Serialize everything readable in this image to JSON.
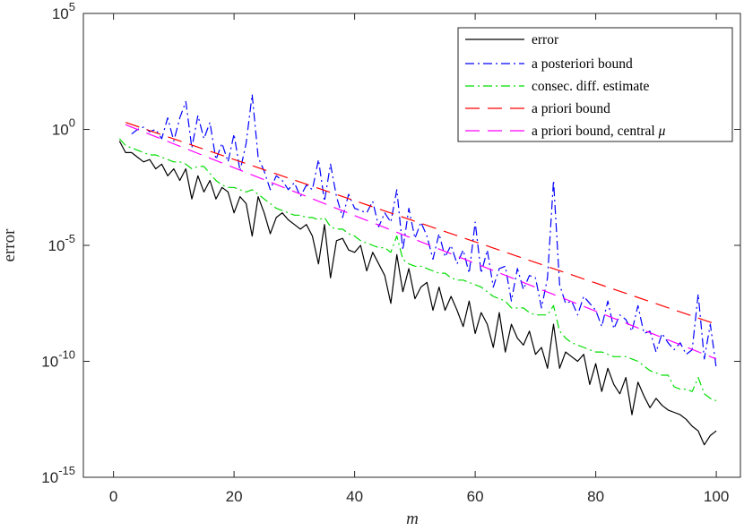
{
  "chart_data": {
    "type": "line",
    "xlabel": "m",
    "ylabel": "error",
    "xlim": [
      -5,
      104
    ],
    "ylim_exponent": [
      -15,
      5
    ],
    "y_scale": "log10",
    "x_ticks": [
      0,
      20,
      40,
      60,
      80,
      100
    ],
    "y_ticks": [
      {
        "base": "10",
        "exp": "5",
        "value": 5
      },
      {
        "base": "10",
        "exp": "0",
        "value": 0
      },
      {
        "base": "10",
        "exp": "-5",
        "value": -5
      },
      {
        "base": "10",
        "exp": "-10",
        "value": -10
      },
      {
        "base": "10",
        "exp": "-15",
        "value": -15
      }
    ],
    "legend_position": "top-right",
    "series": [
      {
        "name": "error",
        "color": "#000000",
        "dash": "",
        "x": [
          1,
          2,
          3,
          4,
          5,
          6,
          7,
          8,
          9,
          10,
          11,
          12,
          13,
          14,
          15,
          16,
          17,
          18,
          19,
          20,
          21,
          22,
          23,
          24,
          25,
          26,
          27,
          28,
          29,
          30,
          31,
          32,
          33,
          34,
          35,
          36,
          37,
          38,
          39,
          40,
          41,
          42,
          43,
          44,
          45,
          46,
          47,
          48,
          49,
          50,
          51,
          52,
          53,
          54,
          55,
          56,
          57,
          58,
          59,
          60,
          61,
          62,
          63,
          64,
          65,
          66,
          67,
          68,
          69,
          70,
          71,
          72,
          73,
          74,
          75,
          76,
          77,
          78,
          79,
          80,
          81,
          82,
          83,
          84,
          85,
          86,
          87,
          88,
          89,
          90,
          91,
          92,
          93,
          94,
          95,
          96,
          97,
          98,
          99,
          100
        ],
        "log10_y": [
          -0.5,
          -1.0,
          -1.0,
          -1.2,
          -1.4,
          -1.3,
          -1.7,
          -1.5,
          -2.0,
          -1.7,
          -2.2,
          -1.7,
          -3.0,
          -2.0,
          -2.7,
          -2.2,
          -3.0,
          -2.5,
          -2.7,
          -3.6,
          -2.9,
          -3.2,
          -4.6,
          -2.9,
          -3.6,
          -4.5,
          -3.8,
          -3.6,
          -3.9,
          -4.1,
          -4.3,
          -4.1,
          -4.6,
          -5.8,
          -4.1,
          -6.4,
          -4.8,
          -4.7,
          -5.2,
          -5.3,
          -5.0,
          -6.1,
          -5.3,
          -5.8,
          -6.3,
          -7.5,
          -5.4,
          -7.0,
          -6.0,
          -7.3,
          -6.8,
          -6.6,
          -7.8,
          -6.8,
          -7.8,
          -7.2,
          -7.8,
          -8.5,
          -7.4,
          -8.8,
          -7.9,
          -8.4,
          -9.4,
          -7.9,
          -9.6,
          -8.4,
          -9.0,
          -9.3,
          -8.7,
          -9.7,
          -9.4,
          -10.3,
          -8.4,
          -10.3,
          -9.6,
          -9.8,
          -10.0,
          -9.7,
          -11.0,
          -10.1,
          -11.3,
          -10.3,
          -11.0,
          -11.4,
          -10.7,
          -12.3,
          -10.9,
          -11.5,
          -12.0,
          -11.6,
          -11.9,
          -12.1,
          -12.2,
          -12.3,
          -12.5,
          -12.8,
          -13.0,
          -13.6,
          -13.2,
          -13.0,
          -13.4
        ]
      },
      {
        "name": "a posteriori bound",
        "color": "#0000ff",
        "dash": "10,4,2,4",
        "x": [
          3,
          4,
          5,
          6,
          7,
          8,
          9,
          10,
          11,
          12,
          13,
          14,
          15,
          16,
          17,
          18,
          19,
          20,
          21,
          22,
          23,
          24,
          25,
          26,
          27,
          28,
          29,
          30,
          31,
          32,
          33,
          34,
          35,
          36,
          37,
          38,
          39,
          40,
          41,
          42,
          43,
          44,
          45,
          46,
          47,
          48,
          49,
          50,
          51,
          52,
          53,
          54,
          55,
          56,
          57,
          58,
          59,
          60,
          61,
          62,
          63,
          64,
          65,
          66,
          67,
          68,
          69,
          70,
          71,
          72,
          73,
          74,
          75,
          76,
          77,
          78,
          79,
          80,
          81,
          82,
          83,
          84,
          85,
          86,
          87,
          88,
          89,
          90,
          91,
          92,
          93,
          94,
          95,
          96,
          97,
          98,
          99,
          100
        ],
        "log10_y": [
          -0.2,
          0.0,
          0.1,
          -0.1,
          0.0,
          -0.4,
          0.5,
          -0.5,
          0.5,
          1.2,
          -0.8,
          0.6,
          -0.4,
          0.3,
          -1.3,
          -0.6,
          -1.4,
          -0.2,
          -1.8,
          -0.6,
          1.5,
          -1.2,
          -1.8,
          -2.6,
          -2.0,
          -2.2,
          -2.6,
          -2.3,
          -2.9,
          -2.4,
          -2.6,
          -1.3,
          -3.1,
          -1.5,
          -2.9,
          -3.8,
          -2.8,
          -3.4,
          -3.5,
          -3.6,
          -3.1,
          -4.2,
          -3.6,
          -4.0,
          -2.6,
          -5.2,
          -3.4,
          -4.7,
          -4.0,
          -4.6,
          -5.6,
          -4.5,
          -5.5,
          -5.0,
          -5.8,
          -5.2,
          -6.2,
          -4.0,
          -6.2,
          -5.2,
          -6.8,
          -6.0,
          -5.9,
          -7.4,
          -6.0,
          -6.9,
          -6.3,
          -6.4,
          -7.7,
          -6.4,
          -2.2,
          -6.7,
          -7.5,
          -7.4,
          -8.0,
          -7.2,
          -7.5,
          -7.8,
          -8.5,
          -7.4,
          -8.6,
          -8.0,
          -8.2,
          -8.7,
          -7.6,
          -8.8,
          -8.7,
          -9.6,
          -8.8,
          -9.2,
          -9.5,
          -9.2,
          -9.7,
          -9.5,
          -7.1,
          -9.9,
          -8.4,
          -10.3
        ]
      },
      {
        "name": "consec. diff. estimate",
        "color": "#00dd00",
        "dash": "10,4,2,4",
        "x": [
          1,
          2,
          3,
          4,
          5,
          6,
          7,
          8,
          9,
          10,
          11,
          12,
          13,
          14,
          15,
          16,
          17,
          18,
          19,
          20,
          21,
          22,
          23,
          24,
          25,
          26,
          27,
          28,
          29,
          30,
          31,
          32,
          33,
          34,
          35,
          36,
          37,
          38,
          39,
          40,
          41,
          42,
          43,
          44,
          45,
          46,
          47,
          48,
          49,
          50,
          51,
          52,
          53,
          54,
          55,
          56,
          57,
          58,
          59,
          60,
          61,
          62,
          63,
          64,
          65,
          66,
          67,
          68,
          69,
          70,
          71,
          72,
          73,
          74,
          75,
          76,
          77,
          78,
          79,
          80,
          81,
          82,
          83,
          84,
          85,
          86,
          87,
          88,
          89,
          90,
          91,
          92,
          93,
          94,
          95,
          96,
          97,
          98,
          99,
          100
        ],
        "log10_y": [
          -0.4,
          -0.7,
          -0.8,
          -0.9,
          -1.0,
          -1.1,
          -1.1,
          -1.2,
          -1.3,
          -1.4,
          -1.4,
          -1.5,
          -1.7,
          -1.6,
          -1.6,
          -1.9,
          -2.2,
          -2.4,
          -2.5,
          -2.5,
          -2.6,
          -2.7,
          -2.6,
          -2.8,
          -3.0,
          -3.2,
          -3.4,
          -3.5,
          -3.6,
          -3.7,
          -3.7,
          -3.8,
          -3.8,
          -3.9,
          -3.8,
          -4.2,
          -4.3,
          -4.3,
          -4.5,
          -4.6,
          -4.8,
          -4.9,
          -5.0,
          -5.1,
          -5.1,
          -5.3,
          -4.6,
          -5.6,
          -5.8,
          -5.9,
          -5.9,
          -6.0,
          -6.1,
          -6.2,
          -6.2,
          -6.4,
          -6.5,
          -6.5,
          -6.6,
          -6.7,
          -6.8,
          -7.0,
          -7.2,
          -7.3,
          -7.4,
          -7.7,
          -7.7,
          -7.7,
          -7.9,
          -8.0,
          -8.0,
          -8.0,
          -7.6,
          -8.7,
          -9.0,
          -9.2,
          -9.3,
          -9.4,
          -9.5,
          -9.6,
          -9.6,
          -9.7,
          -9.8,
          -9.8,
          -9.8,
          -9.9,
          -10.0,
          -10.2,
          -10.4,
          -10.5,
          -10.6,
          -10.6,
          -11.1,
          -11.2,
          -11.2,
          -11.3,
          -10.7,
          -11.4,
          -11.6,
          -11.7
        ]
      },
      {
        "name": "a priori bound",
        "color": "#ff0000",
        "dash": "16,9",
        "x": [
          2,
          100
        ],
        "log10_y": [
          0.3,
          -8.4
        ]
      },
      {
        "name": "a priori bound, central μ",
        "color": "#ff00ff",
        "dash": "16,9",
        "x": [
          2,
          100
        ],
        "log10_y": [
          0.2,
          -9.9
        ]
      }
    ],
    "legend_entries": [
      {
        "label": "error"
      },
      {
        "label": "a posteriori bound"
      },
      {
        "label": "consec. diff. estimate"
      },
      {
        "label": "a priori bound"
      },
      {
        "label": "a priori bound, central "
      }
    ],
    "legend_suffix_mu": "μ"
  }
}
